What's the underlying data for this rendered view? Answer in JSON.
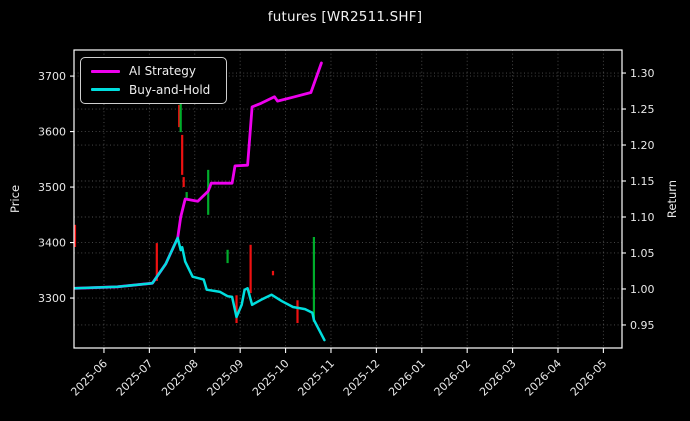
{
  "title": "futures [WR2511.SHF]",
  "chart_data": {
    "type": "line",
    "title": "futures [WR2511.SHF]",
    "ylabel_left": "Price",
    "ylabel_right": "Return",
    "grid": true,
    "legend_position": "upper left",
    "x_tick_labels": [
      "2025-06",
      "2025-07",
      "2025-08",
      "2025-09",
      "2025-10",
      "2025-11",
      "2025-12",
      "2026-01",
      "2026-02",
      "2026-03",
      "2026-04",
      "2026-05"
    ],
    "price_ticks": [
      3300,
      3400,
      3500,
      3600,
      3700
    ],
    "return_ticks": [
      0.95,
      1.0,
      1.05,
      1.1,
      1.15,
      1.2,
      1.25,
      1.3
    ],
    "axes": {
      "months_base": "2025-06",
      "x_range_months": [
        -0.66,
        11.41
      ],
      "price_range": [
        3210,
        3747
      ],
      "return_range": [
        0.918,
        1.332
      ]
    },
    "legend": [
      {
        "label": "AI Strategy",
        "color": "#ee00ee"
      },
      {
        "label": "Buy-and-Hold",
        "color": "#00dede"
      }
    ],
    "series": [
      {
        "name": "AI Strategy",
        "axis": "return",
        "color": "#ee00ee",
        "width": 2.8,
        "points": [
          [
            "2025-05-12",
            1.001
          ],
          [
            "2025-06-10",
            1.003
          ],
          [
            "2025-07-03",
            1.008
          ],
          [
            "2025-07-12",
            1.035
          ],
          [
            "2025-07-20",
            1.071
          ],
          [
            "2025-07-22",
            1.1
          ],
          [
            "2025-07-25",
            1.125
          ],
          [
            "2025-08-03",
            1.122
          ],
          [
            "2025-08-10",
            1.136
          ],
          [
            "2025-08-12",
            1.147
          ],
          [
            "2025-08-26",
            1.147
          ],
          [
            "2025-08-28",
            1.171
          ],
          [
            "2025-09-06",
            1.172
          ],
          [
            "2025-09-09",
            1.253
          ],
          [
            "2025-09-15",
            1.258
          ],
          [
            "2025-09-24",
            1.267
          ],
          [
            "2025-09-26",
            1.261
          ],
          [
            "2025-10-07",
            1.267
          ],
          [
            "2025-10-18",
            1.273
          ],
          [
            "2025-10-25",
            1.314
          ]
        ]
      },
      {
        "name": "Buy-and-Hold",
        "axis": "return",
        "color": "#00dede",
        "width": 2.5,
        "points": [
          [
            "2025-05-12",
            1.001
          ],
          [
            "2025-06-10",
            1.003
          ],
          [
            "2025-07-03",
            1.008
          ],
          [
            "2025-07-12",
            1.035
          ],
          [
            "2025-07-20",
            1.071
          ],
          [
            "2025-07-22",
            1.054
          ],
          [
            "2025-07-23",
            1.058
          ],
          [
            "2025-07-25",
            1.038
          ],
          [
            "2025-07-30",
            1.017
          ],
          [
            "2025-08-07",
            1.013
          ],
          [
            "2025-08-09",
            0.999
          ],
          [
            "2025-08-18",
            0.996
          ],
          [
            "2025-08-23",
            0.99
          ],
          [
            "2025-08-26",
            0.989
          ],
          [
            "2025-08-29",
            0.961
          ],
          [
            "2025-09-02",
            0.978
          ],
          [
            "2025-09-04",
            0.999
          ],
          [
            "2025-09-06",
            1.001
          ],
          [
            "2025-09-09",
            0.978
          ],
          [
            "2025-09-15",
            0.985
          ],
          [
            "2025-09-22",
            0.992
          ],
          [
            "2025-09-29",
            0.983
          ],
          [
            "2025-10-06",
            0.975
          ],
          [
            "2025-10-14",
            0.972
          ],
          [
            "2025-10-19",
            0.967
          ],
          [
            "2025-10-20",
            0.957
          ],
          [
            "2025-10-27",
            0.929
          ]
        ]
      }
    ],
    "candles": [
      {
        "date": "2025-05-12",
        "high": 3432,
        "low": 3392,
        "color": "red"
      },
      {
        "date": "2025-07-06",
        "high": 3399,
        "low": 3331,
        "color": "red"
      },
      {
        "date": "2025-07-21",
        "high": 3648,
        "low": 3608,
        "color": "red"
      },
      {
        "date": "2025-07-22",
        "high": 3657,
        "low": 3599,
        "color": "green"
      },
      {
        "date": "2025-07-23",
        "high": 3594,
        "low": 3522,
        "color": "red"
      },
      {
        "date": "2025-07-24",
        "high": 3518,
        "low": 3500,
        "color": "red"
      },
      {
        "date": "2025-07-26",
        "high": 3491,
        "low": 3480,
        "color": "green"
      },
      {
        "date": "2025-08-10",
        "high": 3531,
        "low": 3450,
        "color": "green"
      },
      {
        "date": "2025-08-23",
        "high": 3387,
        "low": 3363,
        "color": "green"
      },
      {
        "date": "2025-08-29",
        "high": 3305,
        "low": 3255,
        "color": "red"
      },
      {
        "date": "2025-09-08",
        "high": 3396,
        "low": 3309,
        "color": "red"
      },
      {
        "date": "2025-09-23",
        "high": 3349,
        "low": 3341,
        "color": "red"
      },
      {
        "date": "2025-10-09",
        "high": 3296,
        "low": 3255,
        "color": "red"
      },
      {
        "date": "2025-10-20",
        "high": 3410,
        "low": 3257,
        "color": "green"
      }
    ],
    "colors": {
      "background": "#000000",
      "spine": "#ffffff",
      "grid": "#4f4f4f",
      "tick_text": "#e8e8e8",
      "candle_red": "#ee1111",
      "candle_green": "#00ad2b"
    }
  }
}
